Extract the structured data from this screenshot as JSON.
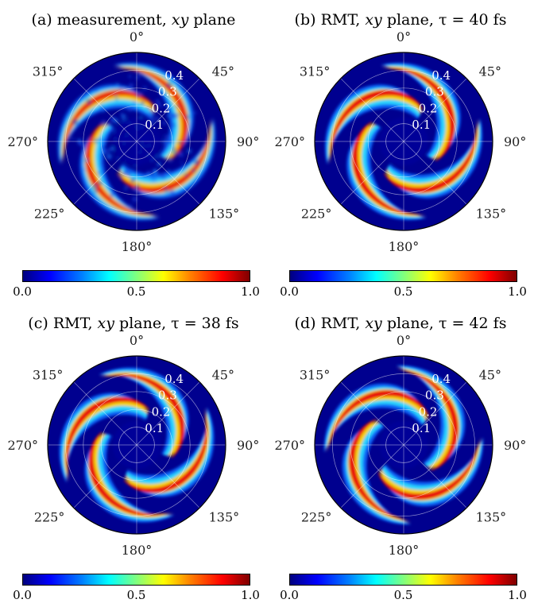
{
  "chart_data": [
    {
      "type": "heatmap",
      "subtype": "polar",
      "title_prefix": "(a)",
      "title_text": "measurement,",
      "title_var": "xy",
      "title_suffix": "plane",
      "angle_labels": [
        "0°",
        "45°",
        "90°",
        "135°",
        "180°",
        "225°",
        "270°",
        "315°"
      ],
      "radial_ticks": [
        "0.1",
        "0.2",
        "0.3",
        "0.4"
      ],
      "colorbar": {
        "min": 0.0,
        "max": 1.0,
        "ticks": [
          "0.0",
          "0.5",
          "1.0"
        ],
        "colormap": "jet"
      },
      "pattern": {
        "arms": 4,
        "noisy": true
      }
    },
    {
      "type": "heatmap",
      "subtype": "polar",
      "title_prefix": "(b)",
      "title_text": "RMT,",
      "title_var": "xy",
      "title_suffix": "plane,  τ = 40 fs",
      "angle_labels": [
        "0°",
        "45°",
        "90°",
        "135°",
        "180°",
        "225°",
        "270°",
        "315°"
      ],
      "radial_ticks": [
        "0.1",
        "0.2",
        "0.3",
        "0.4"
      ],
      "colorbar": {
        "min": 0.0,
        "max": 1.0,
        "ticks": [
          "0.0",
          "0.5",
          "1.0"
        ],
        "colormap": "jet"
      },
      "pattern": {
        "arms": 4,
        "noisy": false
      }
    },
    {
      "type": "heatmap",
      "subtype": "polar",
      "title_prefix": "(c)",
      "title_text": "RMT,",
      "title_var": "xy",
      "title_suffix": "plane,  τ = 38 fs",
      "angle_labels": [
        "0°",
        "45°",
        "90°",
        "135°",
        "180°",
        "225°",
        "270°",
        "315°"
      ],
      "radial_ticks": [
        "0.1",
        "0.2",
        "0.3",
        "0.4"
      ],
      "colorbar": {
        "min": 0.0,
        "max": 1.0,
        "ticks": [
          "0.0",
          "0.5",
          "1.0"
        ],
        "colormap": "jet"
      },
      "pattern": {
        "arms": 4,
        "noisy": false
      }
    },
    {
      "type": "heatmap",
      "subtype": "polar",
      "title_prefix": "(d)",
      "title_text": "RMT,",
      "title_var": "xy",
      "title_suffix": "plane,  τ = 42 fs",
      "angle_labels": [
        "0°",
        "45°",
        "90°",
        "135°",
        "180°",
        "225°",
        "270°",
        "315°"
      ],
      "radial_ticks": [
        "0.1",
        "0.2",
        "0.3",
        "0.4"
      ],
      "colorbar": {
        "min": 0.0,
        "max": 1.0,
        "ticks": [
          "0.0",
          "0.5",
          "1.0"
        ],
        "colormap": "jet"
      },
      "pattern": {
        "arms": 4,
        "noisy": false
      }
    }
  ]
}
